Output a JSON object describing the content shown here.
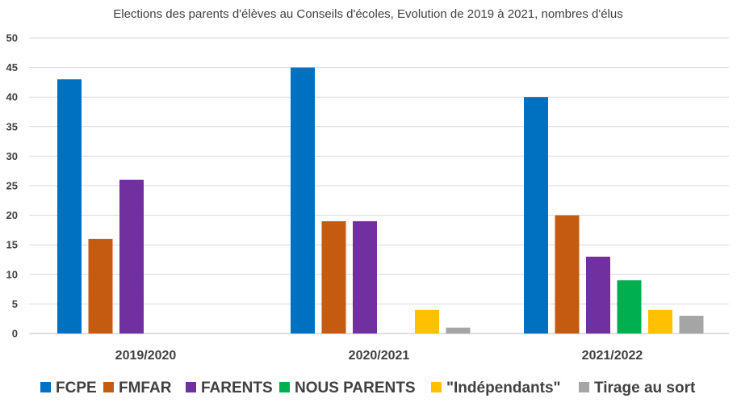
{
  "chart_data": {
    "type": "bar",
    "title": "Elections des parents d'élèves au Conseils d'écoles, Evolution de 2019 à 2021, nombres d'élus",
    "categories": [
      "2019/2020",
      "2020/2021",
      "2021/2022"
    ],
    "ylim": [
      0,
      50
    ],
    "yticks": [
      "0",
      "5",
      "10",
      "15",
      "20",
      "25",
      "30",
      "35",
      "40",
      "45",
      "50"
    ],
    "grid": true,
    "legend_position": "bottom",
    "series": [
      {
        "name": "FCPE",
        "color": "#0070C0",
        "values": [
          43,
          45,
          40
        ]
      },
      {
        "name": "FMFAR",
        "color": "#C55A11",
        "values": [
          16,
          19,
          20
        ]
      },
      {
        "name": "FARENTS",
        "color": "#7030A0",
        "values": [
          26,
          19,
          13
        ]
      },
      {
        "name": "NOUS PARENTS",
        "color": "#00B050",
        "values": [
          0,
          0,
          9
        ]
      },
      {
        "name": "\"Indépendants\"",
        "color": "#FFC000",
        "values": [
          0,
          4,
          4
        ]
      },
      {
        "name": "Tirage au sort",
        "color": "#A5A5A5",
        "values": [
          0,
          1,
          3
        ]
      }
    ]
  }
}
